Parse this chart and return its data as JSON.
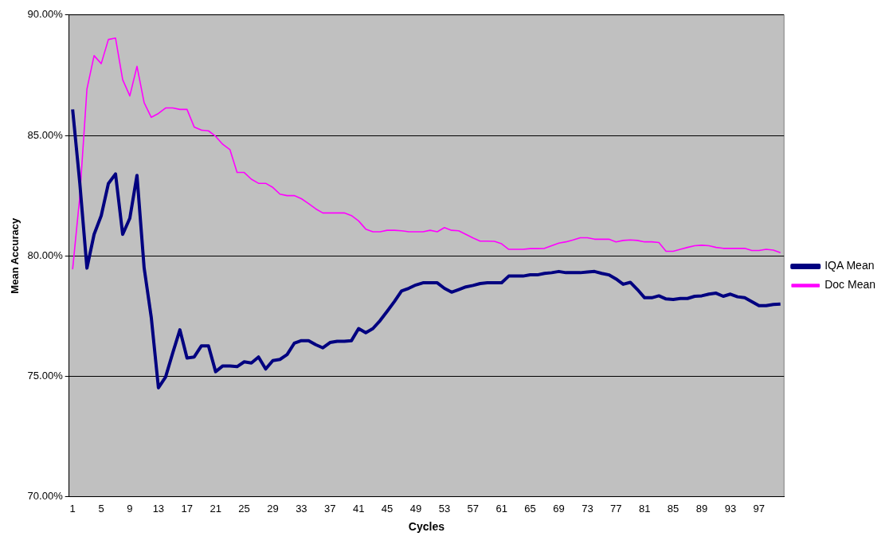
{
  "chart_data": {
    "type": "line",
    "xlabel": "Cycles",
    "ylabel": "Mean Accuracy",
    "categories": [
      "1",
      null,
      null,
      null,
      "5",
      null,
      null,
      null,
      "9",
      null,
      null,
      null,
      "13",
      null,
      null,
      null,
      "17",
      null,
      null,
      null,
      "21",
      null,
      null,
      null,
      "25",
      null,
      null,
      null,
      "29",
      null,
      null,
      null,
      "33",
      null,
      null,
      null,
      "37",
      null,
      null,
      null,
      "41",
      null,
      null,
      null,
      "45",
      null,
      null,
      null,
      "49",
      null,
      null,
      null,
      "53",
      null,
      null,
      null,
      "57",
      null,
      null,
      null,
      "61",
      null,
      null,
      null,
      "65",
      null,
      null,
      null,
      "69",
      null,
      null,
      null,
      "73",
      null,
      null,
      null,
      "77",
      null,
      null,
      null,
      "81",
      null,
      null,
      null,
      "85",
      null,
      null,
      null,
      "89",
      null,
      null,
      null,
      "93",
      null,
      null,
      null,
      "97",
      null,
      null,
      null
    ],
    "series": [
      {
        "name": "IQA Mean",
        "color": "#000080",
        "values": [
          86.08,
          83.03,
          79.49,
          80.89,
          81.67,
          83.0,
          83.4,
          80.89,
          81.56,
          83.34,
          79.5,
          77.44,
          74.52,
          74.97,
          75.97,
          76.93,
          75.76,
          75.8,
          76.26,
          76.26,
          75.19,
          75.43,
          75.43,
          75.4,
          75.6,
          75.55,
          75.8,
          75.3,
          75.65,
          75.7,
          75.9,
          76.37,
          76.48,
          76.48,
          76.31,
          76.18,
          76.4,
          76.45,
          76.45,
          76.48,
          76.98,
          76.81,
          76.98,
          77.31,
          77.7,
          78.1,
          78.54,
          78.65,
          78.79,
          78.88,
          78.88,
          78.88,
          78.65,
          78.49,
          78.6,
          78.71,
          78.77,
          78.85,
          78.88,
          78.88,
          78.88,
          79.16,
          79.16,
          79.16,
          79.21,
          79.21,
          79.27,
          79.3,
          79.35,
          79.3,
          79.3,
          79.3,
          79.33,
          79.35,
          79.27,
          79.21,
          79.04,
          78.82,
          78.9,
          78.6,
          78.26,
          78.26,
          78.34,
          78.21,
          78.19,
          78.23,
          78.23,
          78.32,
          78.34,
          78.41,
          78.45,
          78.32,
          78.41,
          78.3,
          78.26,
          78.1,
          77.93,
          77.93,
          77.98,
          78.0
        ]
      },
      {
        "name": "Doc Mean",
        "color": "#ff00ff",
        "values": [
          79.44,
          82.46,
          86.92,
          88.31,
          87.98,
          88.98,
          89.04,
          87.31,
          86.64,
          87.87,
          86.36,
          85.75,
          85.91,
          86.14,
          86.14,
          86.08,
          86.08,
          85.35,
          85.22,
          85.19,
          84.96,
          84.63,
          84.41,
          83.46,
          83.46,
          83.18,
          83.01,
          83.01,
          82.84,
          82.56,
          82.5,
          82.5,
          82.37,
          82.17,
          81.95,
          81.78,
          81.78,
          81.78,
          81.78,
          81.67,
          81.45,
          81.11,
          81.0,
          81.0,
          81.06,
          81.06,
          81.04,
          81.0,
          81.0,
          81.0,
          81.06,
          81.0,
          81.17,
          81.06,
          81.04,
          80.89,
          80.74,
          80.61,
          80.61,
          80.6,
          80.5,
          80.27,
          80.27,
          80.27,
          80.3,
          80.3,
          80.31,
          80.42,
          80.53,
          80.58,
          80.66,
          80.75,
          80.75,
          80.69,
          80.69,
          80.69,
          80.58,
          80.64,
          80.66,
          80.64,
          80.58,
          80.58,
          80.55,
          80.19,
          80.19,
          80.27,
          80.35,
          80.42,
          80.44,
          80.42,
          80.35,
          80.31,
          80.31,
          80.31,
          80.31,
          80.22,
          80.22,
          80.27,
          80.24,
          80.13
        ]
      }
    ],
    "ylim": [
      70,
      90
    ],
    "yticks": [
      {
        "value": 70,
        "label": "70.00%"
      },
      {
        "value": 75,
        "label": "75.00%"
      },
      {
        "value": 80,
        "label": "80.00%"
      },
      {
        "value": 85,
        "label": "85.00%"
      },
      {
        "value": 90,
        "label": "90.00%"
      }
    ],
    "grid": "y",
    "legend": "right",
    "marker": "none",
    "line_style": "solid"
  }
}
